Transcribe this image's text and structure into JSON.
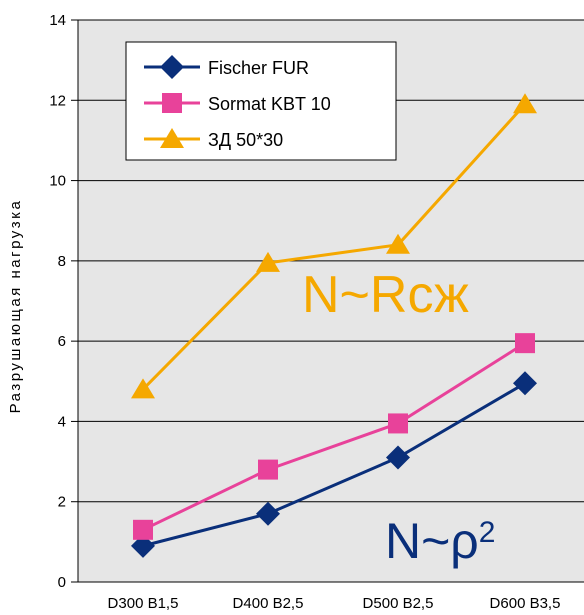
{
  "chart_data": {
    "type": "line",
    "categories": [
      "D300 B1,5",
      "D400 B2,5",
      "D500 B2,5",
      "D600 B3,5"
    ],
    "ylabel": "Разрушающая нагрузка",
    "xlabel": "",
    "ylim": [
      0,
      14
    ],
    "yticks": [
      0,
      2,
      4,
      6,
      8,
      10,
      12,
      14
    ],
    "grid": true,
    "legend_position": "top-left",
    "background": "#e6e6e6",
    "series": [
      {
        "name": "Fischer FUR",
        "values": [
          0.9,
          1.7,
          3.1,
          4.95
        ],
        "color": "#0a2f7a",
        "marker": "diamond"
      },
      {
        "name": "Sormat KBT 10",
        "values": [
          1.3,
          2.8,
          3.95,
          5.95
        ],
        "color": "#e8429a",
        "marker": "square"
      },
      {
        "name": "ЗД 50*30",
        "values": [
          4.8,
          7.95,
          8.4,
          11.9
        ],
        "color": "#f5a800",
        "marker": "triangle"
      }
    ],
    "annotations": [
      {
        "text": "N~Rсж",
        "color": "#f5a800",
        "x": "D500 B2,5",
        "y": 7.3
      },
      {
        "text": "N~ρ",
        "sup": "2",
        "color": "#0a2f7a",
        "x": "D500 B2,5",
        "y": 1.4
      }
    ]
  }
}
